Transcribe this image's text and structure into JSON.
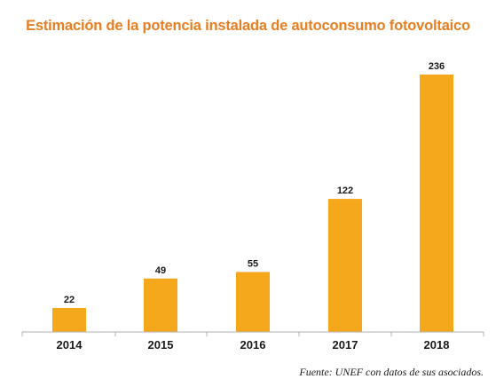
{
  "chart_data": {
    "type": "bar",
    "title": "Estimación de la potencia instalada de autoconsumo fotovoltaico",
    "categories": [
      "2014",
      "2015",
      "2016",
      "2017",
      "2018"
    ],
    "values": [
      22,
      49,
      55,
      122,
      236
    ],
    "data_labels": [
      "22",
      "49",
      "55",
      "122",
      "236"
    ],
    "xlabel": "",
    "ylabel": "",
    "ylim": [
      0,
      236
    ],
    "grid": false,
    "legend": "none",
    "bar_color": "#f5a81c",
    "title_color": "#e67e22",
    "axis_color": "#b0b0b0"
  },
  "source": "Fuente: UNEF con datos de sus asociados."
}
